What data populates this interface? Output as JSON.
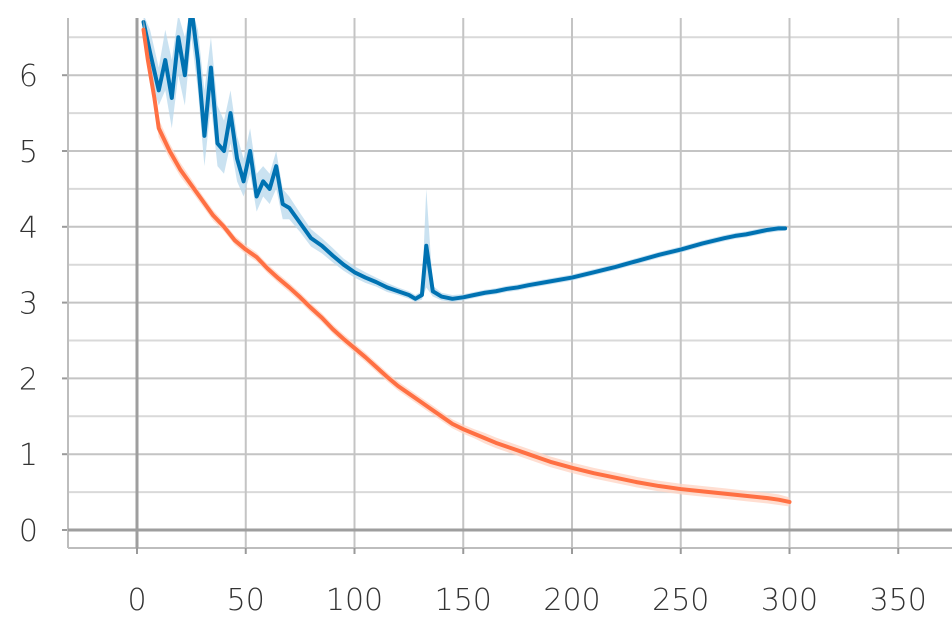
{
  "chart_data": {
    "type": "line",
    "title": "",
    "xlabel": "",
    "ylabel": "",
    "xlim": [
      -32,
      360
    ],
    "ylim": [
      -0.25,
      6.75
    ],
    "x_ticks": [
      0,
      50,
      100,
      150,
      200,
      250,
      300,
      350
    ],
    "y_ticks": [
      0,
      1,
      2,
      3,
      4,
      5,
      6
    ],
    "x_tick_labels": [
      "0",
      "50",
      "100",
      "150",
      "200",
      "250",
      "300",
      "350"
    ],
    "y_tick_labels": [
      "0",
      "1",
      "2",
      "3",
      "4",
      "5",
      "6"
    ],
    "grid": true,
    "legend": "none",
    "series": [
      {
        "color": "#0072b2",
        "band_color": "#b8d8ec",
        "x": [
          3,
          6,
          10,
          13,
          16,
          19,
          22,
          25,
          28,
          31,
          34,
          37,
          40,
          43,
          46,
          49,
          52,
          55,
          58,
          61,
          64,
          67,
          70,
          75,
          80,
          85,
          90,
          95,
          100,
          105,
          110,
          115,
          120,
          125,
          128,
          131,
          133,
          136,
          140,
          145,
          150,
          155,
          160,
          165,
          170,
          175,
          180,
          190,
          200,
          210,
          220,
          230,
          240,
          250,
          260,
          270,
          275,
          280,
          285,
          290,
          295,
          298
        ],
        "y": [
          6.7,
          6.3,
          5.8,
          6.2,
          5.7,
          6.5,
          6.0,
          6.9,
          6.2,
          5.2,
          6.1,
          5.1,
          5.0,
          5.5,
          4.9,
          4.6,
          5.0,
          4.4,
          4.6,
          4.5,
          4.8,
          4.3,
          4.25,
          4.05,
          3.85,
          3.75,
          3.62,
          3.5,
          3.4,
          3.33,
          3.27,
          3.2,
          3.15,
          3.1,
          3.05,
          3.1,
          3.75,
          3.15,
          3.08,
          3.05,
          3.07,
          3.1,
          3.13,
          3.15,
          3.18,
          3.2,
          3.23,
          3.28,
          3.33,
          3.4,
          3.47,
          3.55,
          3.63,
          3.7,
          3.78,
          3.85,
          3.88,
          3.9,
          3.93,
          3.96,
          3.98,
          3.98
        ],
        "y_band_high": [
          6.8,
          6.6,
          6.1,
          6.6,
          6.2,
          6.8,
          6.5,
          6.9,
          6.6,
          5.8,
          6.5,
          5.6,
          5.4,
          5.8,
          5.2,
          4.9,
          5.3,
          4.7,
          4.8,
          4.7,
          5.0,
          4.5,
          4.4,
          4.18,
          3.97,
          3.85,
          3.72,
          3.58,
          3.48,
          3.4,
          3.33,
          3.26,
          3.2,
          3.15,
          3.1,
          3.15,
          4.5,
          3.22,
          3.13,
          3.1,
          3.11,
          3.14,
          3.17,
          3.19,
          3.22,
          3.24,
          3.27,
          3.32,
          3.37,
          3.44,
          3.51,
          3.59,
          3.67,
          3.74,
          3.82,
          3.89,
          3.92,
          3.94,
          3.97,
          4.0,
          4.02,
          4.01
        ],
        "y_band_low": [
          6.5,
          6.0,
          5.6,
          5.8,
          5.3,
          6.0,
          5.6,
          6.5,
          5.8,
          4.8,
          5.6,
          4.8,
          4.7,
          5.1,
          4.6,
          4.4,
          4.7,
          4.2,
          4.4,
          4.3,
          4.5,
          4.1,
          4.1,
          3.93,
          3.74,
          3.65,
          3.53,
          3.42,
          3.33,
          3.26,
          3.21,
          3.14,
          3.1,
          3.05,
          3.01,
          3.04,
          3.2,
          3.08,
          3.03,
          3.01,
          3.03,
          3.06,
          3.09,
          3.11,
          3.14,
          3.16,
          3.19,
          3.24,
          3.29,
          3.36,
          3.43,
          3.51,
          3.59,
          3.66,
          3.74,
          3.81,
          3.84,
          3.86,
          3.89,
          3.92,
          3.94,
          3.95
        ]
      },
      {
        "color": "#ff7043",
        "band_color": "#ffd3c2",
        "x": [
          3,
          5,
          8,
          10,
          15,
          20,
          25,
          30,
          35,
          40,
          45,
          50,
          55,
          60,
          65,
          70,
          75,
          80,
          85,
          90,
          95,
          100,
          105,
          110,
          115,
          120,
          125,
          130,
          135,
          140,
          145,
          150,
          155,
          160,
          165,
          170,
          175,
          180,
          185,
          190,
          195,
          200,
          210,
          220,
          230,
          240,
          250,
          260,
          270,
          280,
          290,
          295,
          300
        ],
        "y": [
          6.6,
          6.2,
          5.7,
          5.3,
          5.0,
          4.75,
          4.55,
          4.35,
          4.15,
          4.0,
          3.82,
          3.7,
          3.6,
          3.45,
          3.32,
          3.2,
          3.07,
          2.93,
          2.8,
          2.65,
          2.52,
          2.4,
          2.28,
          2.15,
          2.02,
          1.9,
          1.8,
          1.7,
          1.6,
          1.5,
          1.4,
          1.33,
          1.27,
          1.21,
          1.15,
          1.1,
          1.05,
          1.0,
          0.95,
          0.9,
          0.86,
          0.82,
          0.75,
          0.69,
          0.63,
          0.58,
          0.54,
          0.51,
          0.48,
          0.45,
          0.42,
          0.4,
          0.37
        ],
        "y_band_high": [
          6.75,
          6.35,
          5.85,
          5.42,
          5.1,
          4.84,
          4.63,
          4.42,
          4.22,
          4.06,
          3.88,
          3.76,
          3.66,
          3.51,
          3.38,
          3.26,
          3.13,
          2.99,
          2.86,
          2.71,
          2.58,
          2.46,
          2.34,
          2.21,
          2.08,
          1.96,
          1.86,
          1.76,
          1.66,
          1.56,
          1.46,
          1.39,
          1.33,
          1.28,
          1.22,
          1.17,
          1.12,
          1.07,
          1.02,
          0.97,
          0.93,
          0.89,
          0.82,
          0.76,
          0.7,
          0.65,
          0.61,
          0.58,
          0.55,
          0.52,
          0.49,
          0.47,
          0.43
        ],
        "y_band_low": [
          6.45,
          6.05,
          5.55,
          5.18,
          4.9,
          4.66,
          4.47,
          4.28,
          4.08,
          3.94,
          3.76,
          3.64,
          3.54,
          3.39,
          3.26,
          3.14,
          3.01,
          2.87,
          2.74,
          2.59,
          2.46,
          2.34,
          2.22,
          2.09,
          1.96,
          1.84,
          1.74,
          1.64,
          1.54,
          1.44,
          1.34,
          1.27,
          1.21,
          1.14,
          1.08,
          1.03,
          0.98,
          0.93,
          0.88,
          0.83,
          0.79,
          0.75,
          0.68,
          0.62,
          0.56,
          0.51,
          0.47,
          0.44,
          0.41,
          0.38,
          0.35,
          0.33,
          0.31
        ]
      }
    ]
  }
}
